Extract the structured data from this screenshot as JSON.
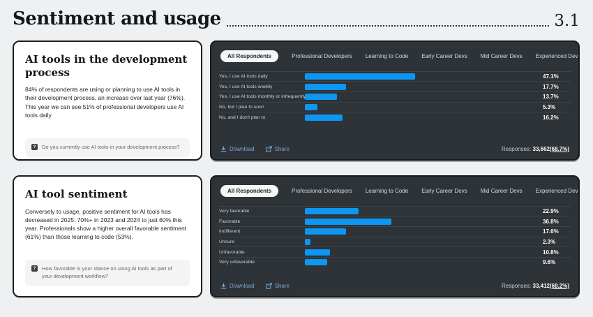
{
  "header": {
    "title": "Sentiment and usage",
    "section_number": "3.1"
  },
  "cards": [
    {
      "title": "AI tools in the development process",
      "body": "84% of respondents are using or planning to use AI tools in their development process, an increase over last year (76%). This year we can see 51% of professional developers use AI tools daily.",
      "question": "Do you currently use AI tools in your development process?"
    },
    {
      "title": "AI tool sentiment",
      "body": "Conversely to usage, positive sentiment for AI tools has decreased in 2025: 70%+ in 2023 and 2024 to just 60% this year. Professionals show a higher overall favorable sentiment (61%) than those learning to code (53%).",
      "question": "How favorable is your stance on using AI tools as part of your development workflow?"
    }
  ],
  "tabs": [
    "All Respondents",
    "Professional Developers",
    "Learning to Code",
    "Early Career Devs",
    "Mid Career Devs",
    "Experienced Devs"
  ],
  "active_tab": "All Respondents",
  "chart_data": [
    {
      "type": "bar",
      "orientation": "horizontal",
      "unit": "%",
      "xlim": [
        0,
        100
      ],
      "grid": false,
      "legend": false,
      "rows": [
        {
          "label": "Yes, I use AI tools daily",
          "value": 47.1,
          "pct": "47.1%"
        },
        {
          "label": "Yes, I use AI tools weekly",
          "value": 17.7,
          "pct": "17.7%"
        },
        {
          "label": "Yes, I use AI tools monthly or infrequently",
          "value": 13.7,
          "pct": "13.7%"
        },
        {
          "label": "No, but I plan to soon",
          "value": 5.3,
          "pct": "5.3%"
        },
        {
          "label": "No, and I don't plan to",
          "value": 16.2,
          "pct": "16.2%"
        }
      ]
    },
    {
      "type": "bar",
      "orientation": "horizontal",
      "unit": "%",
      "xlim": [
        0,
        100
      ],
      "grid": false,
      "legend": false,
      "rows": [
        {
          "label": "Very favorable",
          "value": 22.9,
          "pct": "22.9%"
        },
        {
          "label": "Favorable",
          "value": 36.8,
          "pct": "36.8%"
        },
        {
          "label": "Indifferent",
          "value": 17.6,
          "pct": "17.6%"
        },
        {
          "label": "Unsure",
          "value": 2.3,
          "pct": "2.3%"
        },
        {
          "label": "Unfavorable",
          "value": 10.8,
          "pct": "10.8%"
        },
        {
          "label": "Very unfavorable",
          "value": 9.6,
          "pct": "9.6%"
        }
      ]
    }
  ],
  "actions": {
    "download": "Download",
    "share": "Share"
  },
  "panels": [
    {
      "responses_label": "Responses:",
      "responses_value": "33,662",
      "responses_pct": "(68.7%)"
    },
    {
      "responses_label": "Responses:",
      "responses_value": "33,412",
      "responses_pct": "(68.2%)"
    }
  ],
  "icons": {
    "download": "download-icon",
    "share": "share-icon",
    "question": "question-mark-icon"
  },
  "colors": {
    "bar": "#0d96f2",
    "panel_bg": "#2e3337",
    "page_bg": "#eef0f1",
    "link": "#78a7d4"
  }
}
